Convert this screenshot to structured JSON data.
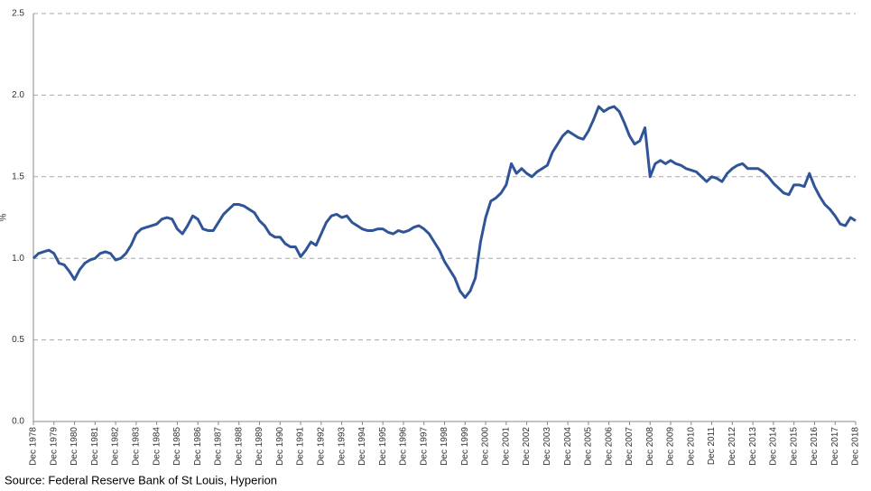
{
  "chart_data": {
    "type": "line",
    "y_label": "%",
    "source": "Source: Federal Reserve Bank of St Louis, Hyperion",
    "color": "#2f5597",
    "grid": true,
    "ylim": [
      0,
      2.5
    ],
    "yticks": [
      {
        "value": 0,
        "label": "0.0"
      },
      0.5,
      {
        "value": 1,
        "label": "1.0"
      },
      1.5,
      {
        "value": 2,
        "label": "2.0"
      },
      2.5
    ],
    "categories": [
      "Dec 1978",
      null,
      null,
      null,
      "Dec 1979",
      null,
      null,
      null,
      "Dec 1980",
      null,
      null,
      null,
      "Dec 1981",
      null,
      null,
      null,
      "Dec 1982",
      null,
      null,
      null,
      "Dec 1983",
      null,
      null,
      null,
      "Dec 1984",
      null,
      null,
      null,
      "Dec 1985",
      null,
      null,
      null,
      "Dec 1986",
      null,
      null,
      null,
      "Dec 1987",
      null,
      null,
      null,
      "Dec 1988",
      null,
      null,
      null,
      "Dec 1989",
      null,
      null,
      null,
      "Dec 1990",
      null,
      null,
      null,
      "Dec 1991",
      null,
      null,
      null,
      "Dec 1992",
      null,
      null,
      null,
      "Dec 1993",
      null,
      null,
      null,
      "Dec 1994",
      null,
      null,
      null,
      "Dec 1995",
      null,
      null,
      null,
      "Dec 1996",
      null,
      null,
      null,
      "Dec 1997",
      null,
      null,
      null,
      "Dec 1998",
      null,
      null,
      null,
      "Dec 1999",
      null,
      null,
      null,
      "Dec 2000",
      null,
      null,
      null,
      "Dec 2001",
      null,
      null,
      null,
      "Dec 2002",
      null,
      null,
      null,
      "Dec 2003",
      null,
      null,
      null,
      "Dec 2004",
      null,
      null,
      null,
      "Dec 2005",
      null,
      null,
      null,
      "Dec 2006",
      null,
      null,
      null,
      "Dec 2007",
      null,
      null,
      null,
      "Dec 2008",
      null,
      null,
      null,
      "Dec 2009",
      null,
      null,
      null,
      "Dec 2010",
      null,
      null,
      null,
      "Dec 2011",
      null,
      null,
      null,
      "Dec 2012",
      null,
      null,
      null,
      "Dec 2013",
      null,
      null,
      null,
      "Dec 2014",
      null,
      null,
      null,
      "Dec 2015",
      null,
      null,
      null,
      "Dec 2016",
      null,
      null,
      null,
      "Dec 2017",
      null,
      null,
      null,
      "Dec 2018"
    ],
    "values": [
      1.0,
      1.03,
      1.04,
      1.05,
      1.03,
      0.97,
      0.96,
      0.92,
      0.87,
      0.93,
      0.97,
      0.99,
      1.0,
      1.03,
      1.04,
      1.03,
      0.99,
      1.0,
      1.03,
      1.08,
      1.15,
      1.18,
      1.19,
      1.2,
      1.21,
      1.24,
      1.25,
      1.24,
      1.18,
      1.15,
      1.2,
      1.26,
      1.24,
      1.18,
      1.17,
      1.17,
      1.22,
      1.27,
      1.3,
      1.33,
      1.33,
      1.32,
      1.3,
      1.28,
      1.23,
      1.2,
      1.15,
      1.13,
      1.13,
      1.09,
      1.07,
      1.07,
      1.01,
      1.05,
      1.1,
      1.08,
      1.15,
      1.22,
      1.26,
      1.27,
      1.25,
      1.26,
      1.22,
      1.2,
      1.18,
      1.17,
      1.17,
      1.18,
      1.18,
      1.16,
      1.15,
      1.17,
      1.16,
      1.17,
      1.19,
      1.2,
      1.18,
      1.15,
      1.1,
      1.05,
      0.98,
      0.93,
      0.88,
      0.8,
      0.76,
      0.8,
      0.88,
      1.1,
      1.25,
      1.35,
      1.37,
      1.4,
      1.45,
      1.58,
      1.52,
      1.55,
      1.52,
      1.5,
      1.53,
      1.55,
      1.57,
      1.65,
      1.7,
      1.75,
      1.78,
      1.76,
      1.74,
      1.73,
      1.78,
      1.85,
      1.93,
      1.9,
      1.92,
      1.93,
      1.9,
      1.83,
      1.75,
      1.7,
      1.72,
      1.8,
      1.5,
      1.58,
      1.6,
      1.58,
      1.6,
      1.58,
      1.57,
      1.55,
      1.54,
      1.53,
      1.5,
      1.47,
      1.5,
      1.49,
      1.47,
      1.52,
      1.55,
      1.57,
      1.58,
      1.55,
      1.55,
      1.55,
      1.53,
      1.5,
      1.46,
      1.43,
      1.4,
      1.39,
      1.45,
      1.45,
      1.44,
      1.52,
      1.44,
      1.38,
      1.33,
      1.3,
      1.26,
      1.21,
      1.2,
      1.25,
      1.23
    ]
  }
}
